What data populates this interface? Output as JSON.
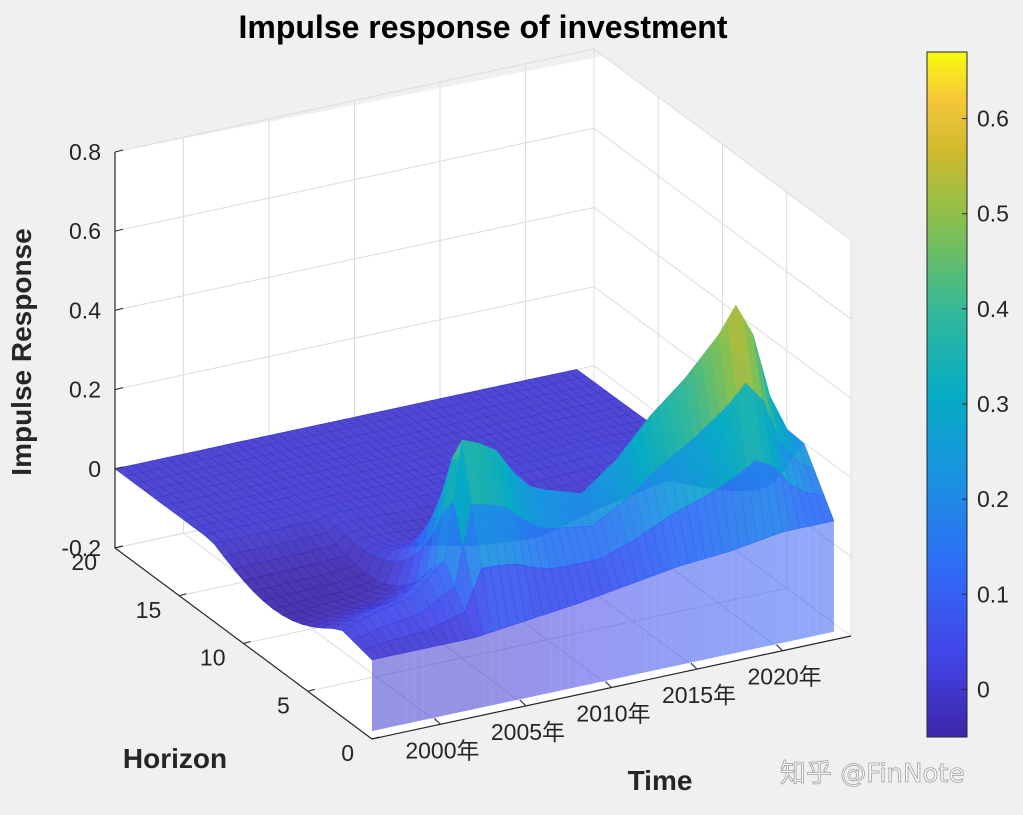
{
  "chart_data": {
    "type": "surface",
    "title": "Impulse response of investment",
    "xlabel": "Time",
    "ylabel": "Horizon",
    "zlabel": "Impulse Response",
    "x_ticks": [
      "2000年",
      "2005年",
      "2010年",
      "2015年",
      "2020年"
    ],
    "y_ticks": [
      "0",
      "5",
      "10",
      "15",
      "20"
    ],
    "z_ticks": [
      "-0.2",
      "0",
      "0.2",
      "0.4",
      "0.6",
      "0.8"
    ],
    "colorbar_ticks": [
      "0",
      "0.1",
      "0.2",
      "0.3",
      "0.4",
      "0.5",
      "0.6"
    ],
    "colorbar_range": [
      -0.05,
      0.67
    ],
    "xlim": [
      1996,
      2024
    ],
    "ylim": [
      0,
      20
    ],
    "zlim": [
      -0.2,
      0.8
    ],
    "colormap": "parula",
    "grid": true,
    "colorbar": "right",
    "time_range": [
      1996,
      2023
    ],
    "horizon_range": [
      0,
      20
    ],
    "response_at_horizon_0": [
      {
        "time": 1996.0,
        "value": 0.0
      },
      {
        "time": 2002.0,
        "value": 0.0
      },
      {
        "time": 2006.0,
        "value": 0.02
      },
      {
        "time": 2008.0,
        "value": 0.03
      },
      {
        "time": 2011.0,
        "value": 0.05
      },
      {
        "time": 2014.0,
        "value": 0.07
      },
      {
        "time": 2017.0,
        "value": 0.08
      },
      {
        "time": 2020.0,
        "value": 0.1
      },
      {
        "time": 2023.0,
        "value": 0.1
      }
    ],
    "peak_response": [
      {
        "time": 1996.0,
        "value": 0.02
      },
      {
        "time": 1998.0,
        "value": 0.05
      },
      {
        "time": 2000.0,
        "value": 0.07
      },
      {
        "time": 2002.0,
        "value": 0.15
      },
      {
        "time": 2003.0,
        "value": 0.47
      },
      {
        "time": 2004.0,
        "value": 0.45
      },
      {
        "time": 2005.0,
        "value": 0.42
      },
      {
        "time": 2006.0,
        "value": 0.35
      },
      {
        "time": 2007.0,
        "value": 0.3
      },
      {
        "time": 2008.0,
        "value": 0.28
      },
      {
        "time": 2010.0,
        "value": 0.25
      },
      {
        "time": 2012.0,
        "value": 0.32
      },
      {
        "time": 2014.0,
        "value": 0.42
      },
      {
        "time": 2016.0,
        "value": 0.5
      },
      {
        "time": 2018.0,
        "value": 0.6
      },
      {
        "time": 2019.0,
        "value": 0.67
      },
      {
        "time": 2020.0,
        "value": 0.58
      },
      {
        "time": 2021.0,
        "value": 0.4
      },
      {
        "time": 2022.0,
        "value": 0.3
      },
      {
        "time": 2023.0,
        "value": 0.25
      }
    ]
  },
  "colors": {
    "background": "#f0f0f0",
    "axes_face": "#ffffff",
    "grid": "#dcdcdc",
    "axis_line": "#262626"
  },
  "watermark": "知乎 @FinNote"
}
